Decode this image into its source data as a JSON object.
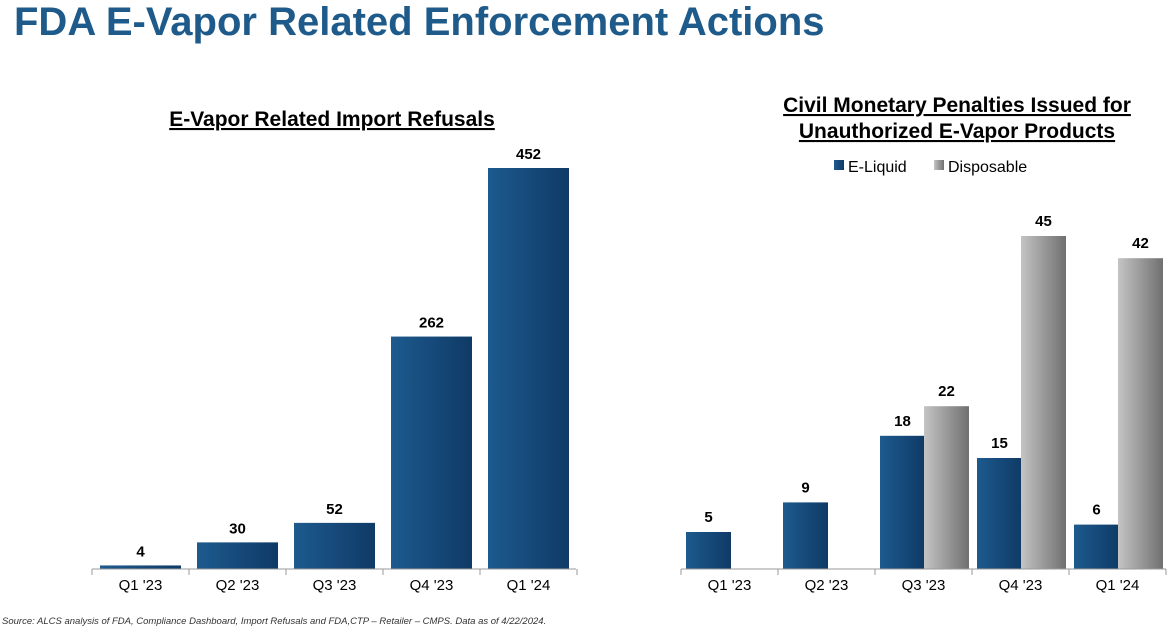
{
  "page": {
    "title": "FDA E-Vapor Related Enforcement Actions",
    "source": "Source: ALCS analysis of FDA, Compliance Dashboard, Import Refusals and FDA,CTP – Retailer – CMPS. Data as of 4/22/2024."
  },
  "colors": {
    "title": "#1f5b8a",
    "eliquid_dark": "#0f3a66",
    "eliquid_light": "#1d5a8e",
    "disposable_dark": "#707070",
    "disposable_light": "#c4c4c4"
  },
  "chart_data": [
    {
      "type": "bar",
      "title": "E-Vapor Related Import Refusals",
      "categories": [
        "Q1 '23",
        "Q2 '23",
        "Q3 '23",
        "Q4 '23",
        "Q1 '24"
      ],
      "series": [
        {
          "values": [
            4,
            30,
            52,
            262,
            452
          ]
        }
      ],
      "ylim": [
        0,
        452
      ],
      "grid": false,
      "data_labels": true
    },
    {
      "type": "bar",
      "title_lines": [
        "Civil Monetary Penalties Issued for",
        "Unauthorized E-Vapor Products"
      ],
      "categories": [
        "Q1 '23",
        "Q2 '23",
        "Q3 '23",
        "Q4 '23",
        "Q1 '24"
      ],
      "series": [
        {
          "name": "E-Liquid",
          "values": [
            5,
            9,
            18,
            15,
            6
          ]
        },
        {
          "name": "Disposable",
          "values": [
            null,
            null,
            22,
            45,
            42
          ]
        }
      ],
      "ylim": [
        0,
        45
      ],
      "grid": false,
      "legend": "top-center",
      "data_labels": true
    }
  ]
}
